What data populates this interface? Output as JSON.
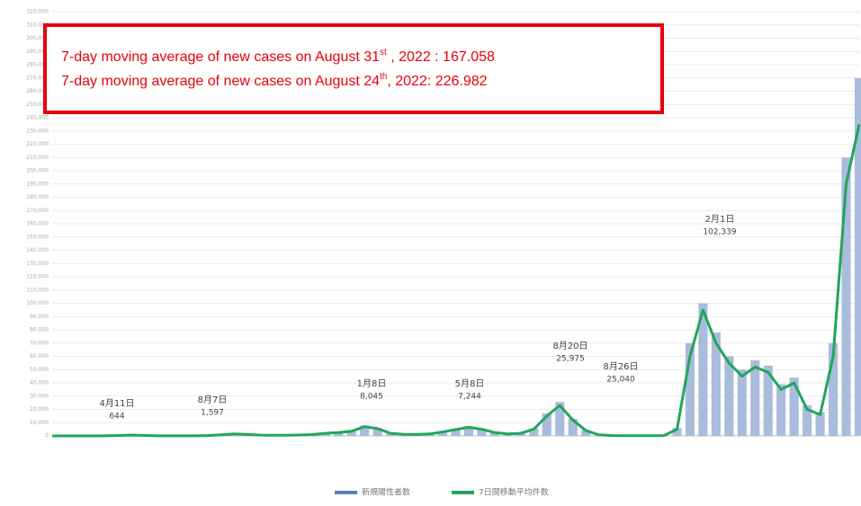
{
  "chart_data": {
    "type": "bar-line",
    "info_box": {
      "lines": [
        {
          "pre": "7-day moving average of new cases  on August 31",
          "sup": "st",
          "post": " , 2022 : 167.058"
        },
        {
          "pre": "7-day moving average of new cases  on August 24",
          "sup": "th",
          "post": ", 2022:  226.982"
        }
      ]
    },
    "categories": [
      null,
      null,
      null,
      null,
      null,
      null,
      null,
      null,
      null,
      null,
      null,
      null,
      null,
      null,
      null,
      null,
      null,
      null,
      null,
      null,
      null,
      null,
      null,
      null,
      null,
      null,
      null,
      null,
      null,
      null,
      null,
      null,
      null,
      null,
      null,
      null,
      null,
      null,
      null,
      null,
      null,
      null,
      null,
      null,
      null,
      null,
      null,
      null,
      null,
      null,
      null,
      null,
      null,
      null,
      null,
      null,
      null,
      null,
      null,
      null,
      null,
      null,
      null
    ],
    "series": [
      {
        "name": "新規陽性者数",
        "type": "bar",
        "color": "#a9bcdc",
        "values": [
          0,
          0,
          0,
          0,
          150,
          400,
          700,
          450,
          120,
          60,
          60,
          120,
          350,
          1000,
          1700,
          1200,
          650,
          550,
          600,
          700,
          1100,
          2200,
          2800,
          3900,
          7800,
          6000,
          2200,
          1300,
          1200,
          1700,
          3300,
          5300,
          7200,
          5500,
          2800,
          1700,
          2200,
          5600,
          17000,
          25500,
          13000,
          4400,
          900,
          350,
          180,
          140,
          170,
          350,
          6000,
          70000,
          100000,
          78000,
          60000,
          50000,
          57000,
          53000,
          39000,
          44000,
          23000,
          18000,
          70000,
          210000,
          270000
        ]
      },
      {
        "name": "7日間移動平均件数",
        "type": "line",
        "color": "#21a65b",
        "values": [
          0,
          0,
          0,
          0,
          100,
          300,
          600,
          400,
          100,
          50,
          50,
          100,
          300,
          900,
          1500,
          1100,
          600,
          500,
          550,
          650,
          1000,
          2000,
          2500,
          3500,
          7000,
          5500,
          2000,
          1200,
          1100,
          1500,
          3000,
          4800,
          6500,
          5000,
          2500,
          1500,
          2000,
          5000,
          15000,
          23000,
          12000,
          4000,
          800,
          300,
          150,
          120,
          150,
          300,
          5000,
          60000,
          95000,
          70000,
          55000,
          45000,
          52000,
          48000,
          35000,
          40000,
          20000,
          16000,
          60000,
          190000,
          235000
        ]
      }
    ],
    "annotations": [
      {
        "text": "4月11日",
        "label": "644"
      },
      {
        "text": "8月7日",
        "label": "1,597"
      },
      {
        "text": "1月8日",
        "label": "8,045"
      },
      {
        "text": "5月8日",
        "label": "7,244"
      },
      {
        "text": "8月20日",
        "label": "25,975"
      },
      {
        "text": "8月26日",
        "label": "25,040"
      },
      {
        "text": "2月1日",
        "label": "102,339"
      }
    ],
    "ylim": [
      0,
      320000
    ],
    "yticks": [
      0,
      {
        "value": 10000,
        "label": "10,000"
      },
      {
        "value": 20000,
        "label": "20,000"
      },
      {
        "value": 30000,
        "label": "30,000"
      },
      {
        "value": 40000,
        "label": "40,000"
      },
      {
        "value": 50000,
        "label": "50,000"
      },
      {
        "value": 60000,
        "label": "60,000"
      },
      {
        "value": 70000,
        "label": "70,000"
      },
      {
        "value": 80000,
        "label": "80,000"
      },
      {
        "value": 90000,
        "label": "90,000"
      },
      {
        "value": 100000,
        "label": "100,000"
      },
      {
        "value": 110000,
        "label": "110,000"
      },
      {
        "value": 120000,
        "label": "120,000"
      },
      {
        "value": 130000,
        "label": "130,000"
      },
      {
        "value": 140000,
        "label": "140,000"
      },
      {
        "value": 150000,
        "label": "150,000"
      },
      {
        "value": 160000,
        "label": "160,000"
      },
      {
        "value": 170000,
        "label": "170,000"
      },
      {
        "value": 180000,
        "label": "180,000"
      },
      {
        "value": 190000,
        "label": "190,000"
      },
      {
        "value": 200000,
        "label": "200,000"
      },
      {
        "value": 210000,
        "label": "210,000"
      },
      {
        "value": 220000,
        "label": "220,000"
      },
      {
        "value": 230000,
        "label": "230,000"
      },
      {
        "value": 240000,
        "label": "240,000"
      },
      {
        "value": 250000,
        "label": "250,000"
      },
      {
        "value": 260000,
        "label": "260,000"
      },
      {
        "value": 270000,
        "label": "270,000"
      },
      {
        "value": 280000,
        "label": "280,000"
      },
      {
        "value": 290000,
        "label": "290,000"
      },
      {
        "value": 300000,
        "label": "300,000"
      },
      {
        "value": 310000,
        "label": "310,000"
      },
      {
        "value": 320000,
        "label": "320,000"
      }
    ],
    "grid": true
  }
}
